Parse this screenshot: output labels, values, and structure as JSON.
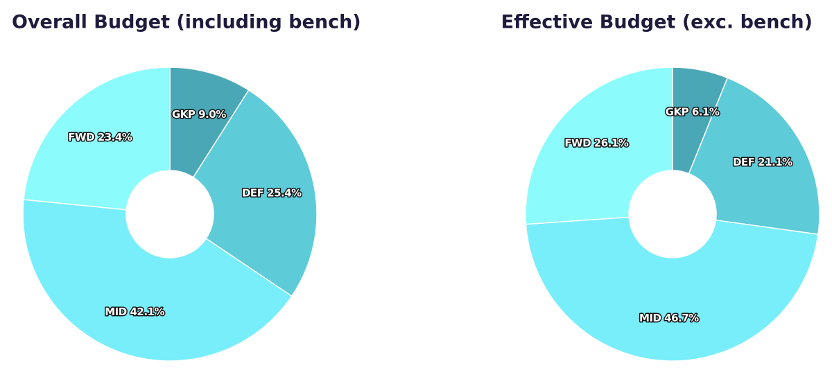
{
  "chart_data": [
    {
      "type": "pie",
      "title": "Overall Budget (including bench)",
      "categories": [
        "GKP",
        "DEF",
        "MID",
        "FWD"
      ],
      "values": [
        9.0,
        25.4,
        42.1,
        23.4
      ],
      "value_labels": [
        "9.0%",
        "25.4%",
        "42.1%",
        "23.4%"
      ],
      "colors": [
        "#4aa7b5",
        "#5ecbd8",
        "#78eefa",
        "#8bfbfc"
      ]
    },
    {
      "type": "pie",
      "title": "Effective Budget (exc. bench)",
      "categories": [
        "GKP",
        "DEF",
        "MID",
        "FWD"
      ],
      "values": [
        6.1,
        21.1,
        46.7,
        26.1
      ],
      "value_labels": [
        "6.1%",
        "21.1%",
        "46.7%",
        "26.1%"
      ],
      "colors": [
        "#4aa7b5",
        "#5ecbd8",
        "#78eefa",
        "#8bfbfc"
      ]
    }
  ]
}
